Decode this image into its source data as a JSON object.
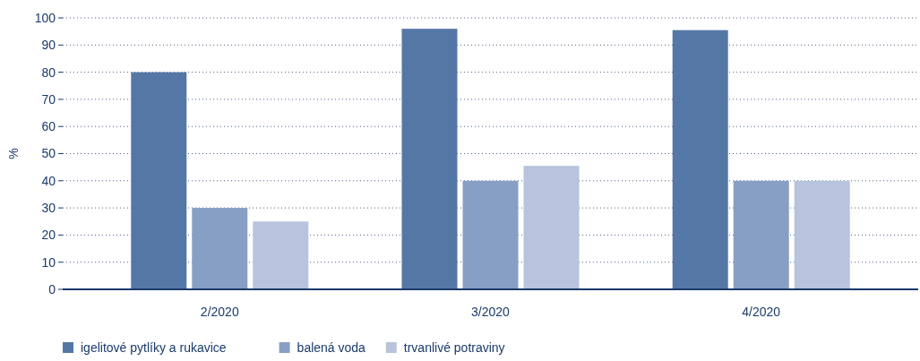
{
  "chart_data": {
    "type": "bar",
    "ylabel": "%",
    "categories": [
      "2/2020",
      "3/2020",
      "4/2020"
    ],
    "series": [
      {
        "name": "igelitové pytlíky a rukavice",
        "color": "#5577a5",
        "values": [
          80,
          96,
          95.5
        ]
      },
      {
        "name": "balená voda",
        "color": "#879fc4",
        "values": [
          30,
          40,
          40
        ]
      },
      {
        "name": "trvanlivé potraviny",
        "color": "#b8c4dd",
        "values": [
          25,
          45.5,
          40
        ]
      }
    ],
    "ylim": [
      0,
      100
    ],
    "yticks": [
      0,
      10,
      20,
      30,
      40,
      50,
      60,
      70,
      80,
      90,
      100
    ],
    "grid": "y",
    "legend": "bottom left"
  }
}
